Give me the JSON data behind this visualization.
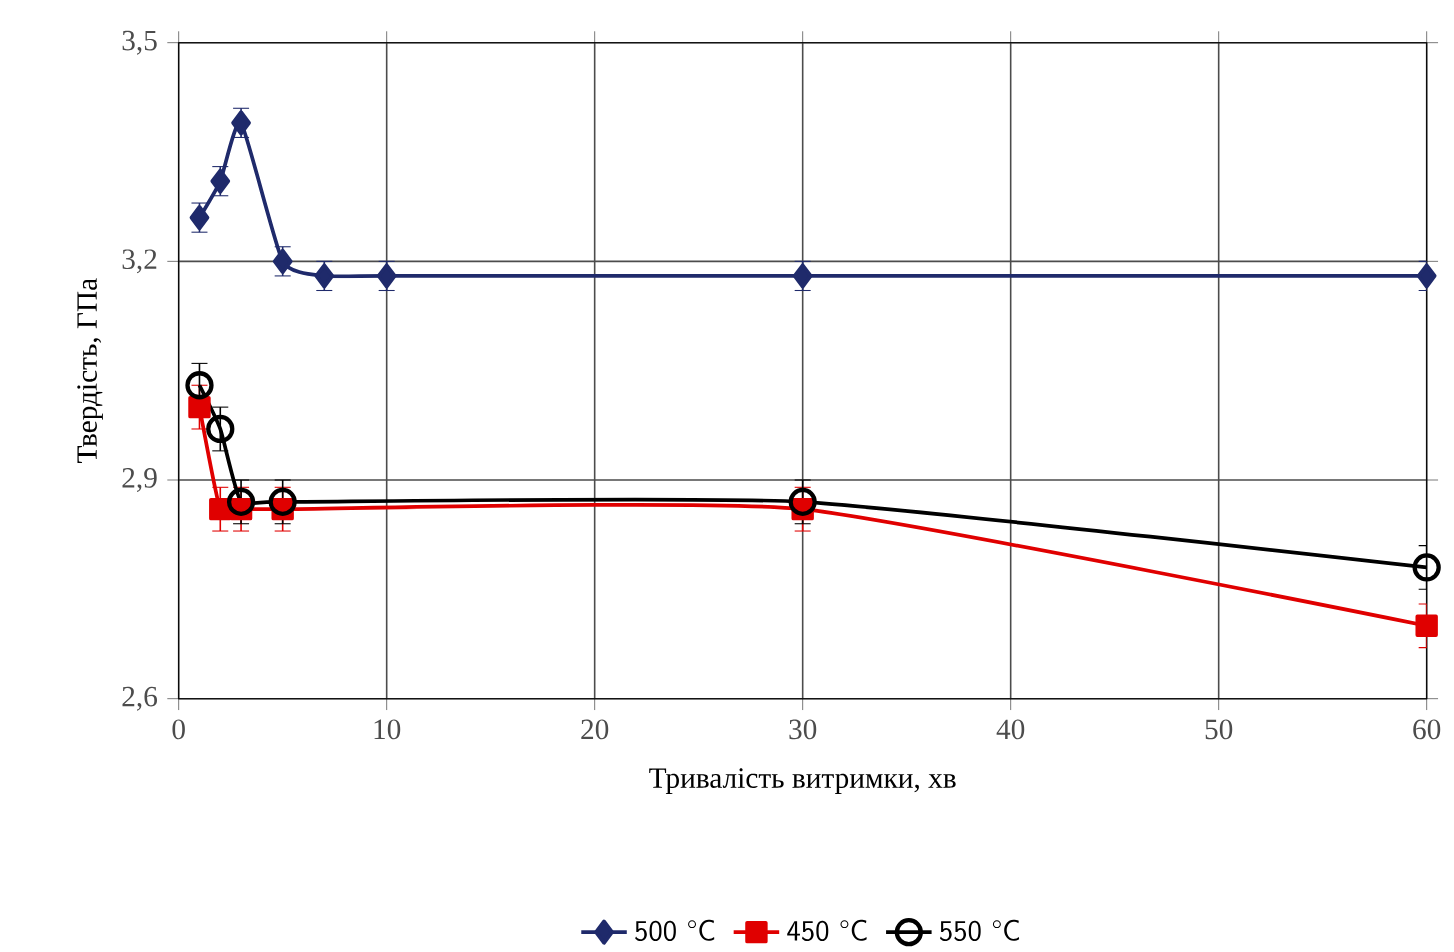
{
  "chart_data": {
    "type": "line",
    "xlabel": "Тривалість витримки, хв",
    "ylabel": "Твердість, ГПа",
    "xlim": [
      0,
      60
    ],
    "xticks": [
      0,
      10,
      20,
      30,
      40,
      50,
      60
    ],
    "ylim": [
      2.6,
      3.5
    ],
    "yticks": [
      {
        "value": 2.6,
        "label": "2,6"
      },
      {
        "value": 2.9,
        "label": "2,9"
      },
      {
        "value": 3.2,
        "label": "3,2"
      },
      {
        "value": 3.5,
        "label": "3,5"
      }
    ],
    "grid": true,
    "legend": "bottom",
    "series": [
      {
        "name": "500 °C",
        "color": "#1f2a6b",
        "marker": "diamond",
        "x": [
          1,
          2,
          3,
          5,
          7,
          10,
          30,
          60
        ],
        "values": [
          3.26,
          3.31,
          3.39,
          3.2,
          3.18,
          3.18,
          3.18,
          3.18
        ],
        "errors": [
          0.02,
          0.02,
          0.02,
          0.02,
          0.02,
          0.02,
          0.02,
          0.02
        ]
      },
      {
        "name": "450 °C",
        "color": "#e00000",
        "marker": "square",
        "x": [
          1,
          2,
          3,
          5,
          30,
          60
        ],
        "values": [
          3.0,
          2.86,
          2.86,
          2.86,
          2.86,
          2.7
        ],
        "errors": [
          0.03,
          0.03,
          0.03,
          0.03,
          0.03,
          0.03
        ]
      },
      {
        "name": "550 °C",
        "color": "#000000",
        "marker": "circle",
        "x": [
          1,
          2,
          3,
          5,
          30,
          60
        ],
        "values": [
          3.03,
          2.97,
          2.87,
          2.87,
          2.87,
          2.78
        ],
        "errors": [
          0.03,
          0.03,
          0.03,
          0.03,
          0.03,
          0.03
        ]
      }
    ]
  }
}
